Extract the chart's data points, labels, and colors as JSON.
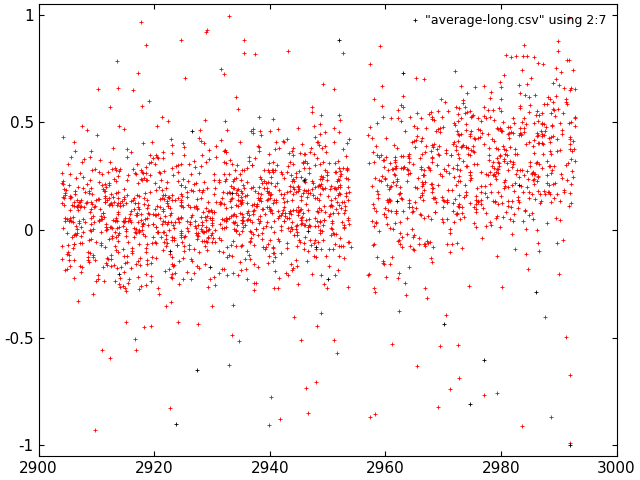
{
  "title": "",
  "xlim": [
    2900,
    3000
  ],
  "ylim": [
    -1.05,
    1.05
  ],
  "xticks": [
    2900,
    2920,
    2940,
    2960,
    2980,
    3000
  ],
  "yticks": [
    -1,
    -0.5,
    0,
    0.5,
    1
  ],
  "legend_label": "\"average-long.csv\" using 2:7",
  "marker_size": 3,
  "marker_edge_width": 0.6,
  "background_color": "#ffffff",
  "red_color": "#ff0000",
  "black_color": "#000000",
  "seed": 12345,
  "figsize": [
    6.4,
    4.8
  ],
  "dpi": 100,
  "font_size": 11
}
